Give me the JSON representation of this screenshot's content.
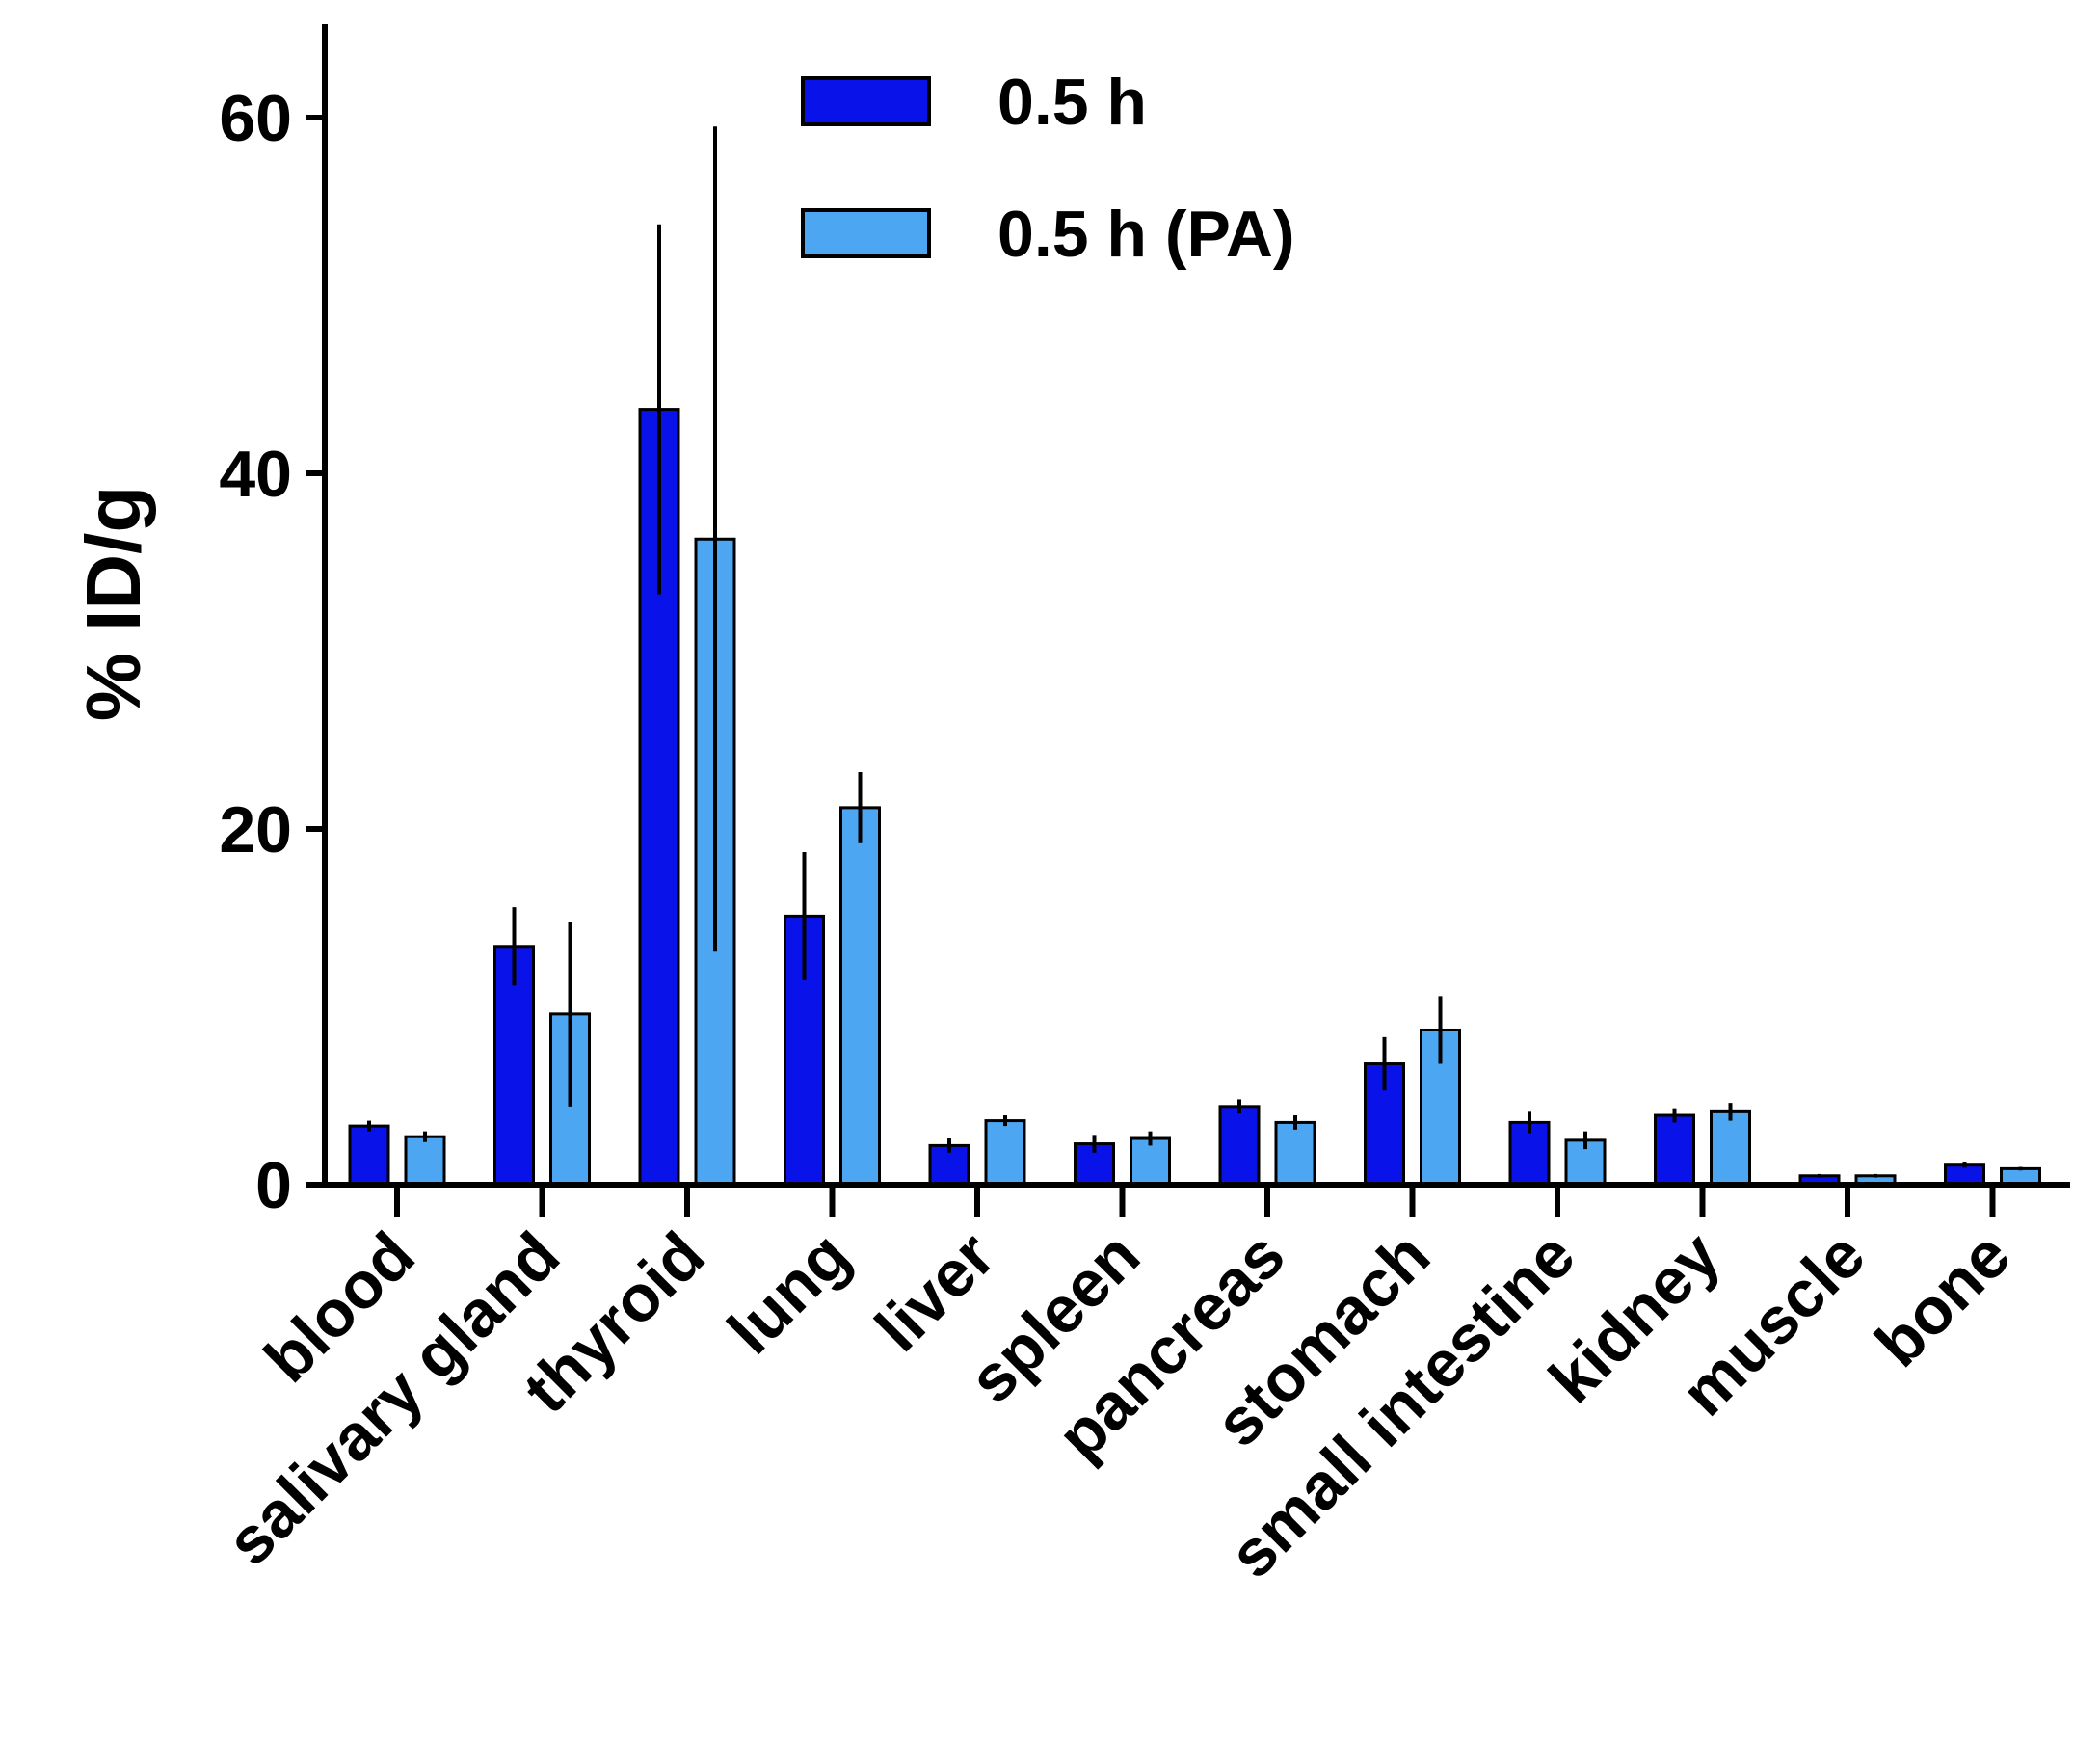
{
  "chart_data": {
    "type": "bar",
    "title": "",
    "xlabel": "",
    "ylabel": "% ID/g",
    "ylim": [
      0,
      65
    ],
    "yticks": [
      0,
      20,
      40,
      60
    ],
    "legend_position": "top-center",
    "categories": [
      "blood",
      "salivary gland",
      "thyroid",
      "lung",
      "liver",
      "spleen",
      "pancreas",
      "stomach",
      "small intestine",
      "kidney",
      "muscle",
      "bone"
    ],
    "series": [
      {
        "name": "0.5 h",
        "color": "#0a12ea",
        "values": [
          3.3,
          13.4,
          43.6,
          15.1,
          2.2,
          2.3,
          4.4,
          6.8,
          3.5,
          3.9,
          0.5,
          1.1
        ],
        "errors": [
          0.3,
          2.2,
          10.4,
          3.6,
          0.4,
          0.5,
          0.4,
          1.5,
          0.6,
          0.4,
          0.1,
          0.15
        ]
      },
      {
        "name": "0.5 h (PA)",
        "color": "#4da6f2",
        "values": [
          2.7,
          9.6,
          36.3,
          21.2,
          3.6,
          2.6,
          3.5,
          8.7,
          2.5,
          4.1,
          0.5,
          0.9
        ],
        "errors": [
          0.3,
          5.2,
          23.2,
          2.0,
          0.3,
          0.4,
          0.4,
          1.9,
          0.5,
          0.5,
          0.1,
          0.1
        ]
      }
    ]
  }
}
